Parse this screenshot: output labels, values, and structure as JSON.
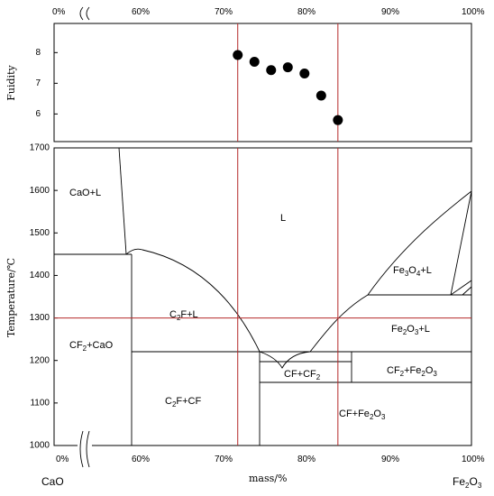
{
  "chart_data": [
    {
      "type": "scatter",
      "ylabel": "Fuidity",
      "xlim_percent": [
        50,
        100
      ],
      "ylim": [
        5.1,
        8.95
      ],
      "y_ticks": [
        "6",
        "7",
        "8"
      ],
      "top_x_ticks": [
        "0%",
        "60%",
        "70%",
        "80%",
        "90%",
        "100%"
      ],
      "points": [
        {
          "x": 72,
          "y": 7.92
        },
        {
          "x": 74,
          "y": 7.7
        },
        {
          "x": 76,
          "y": 7.43
        },
        {
          "x": 78,
          "y": 7.52
        },
        {
          "x": 80,
          "y": 7.32
        },
        {
          "x": 82,
          "y": 6.6
        },
        {
          "x": 84,
          "y": 5.8
        }
      ],
      "point_color": "#000000"
    },
    {
      "type": "phase-diagram",
      "xlabel": "mass/%",
      "ylabel": "Temperature/℃",
      "ylim": [
        1000,
        1700
      ],
      "xlim_percent": [
        50,
        100
      ],
      "y_ticks": [
        "1000",
        "1100",
        "1200",
        "1300",
        "1400",
        "1500",
        "1600",
        "1700"
      ],
      "bottom_x_ticks": [
        "0%",
        "60%",
        "70%",
        "80%",
        "90%",
        "100%"
      ],
      "components": {
        "left": "CaO",
        "right": {
          "base": "Fe",
          "sub": "2",
          "base2": "O",
          "sub2": "3"
        }
      },
      "regions": {
        "cao_l": "CaO+L",
        "l": "L",
        "c2f_l": {
          "a": "C",
          "sub": "2",
          "b": "F+L"
        },
        "fe3o4_l": {
          "a": "Fe",
          "sub1": "3",
          "b": "O",
          "sub2": "4",
          "c": "+L"
        },
        "fe2o3_l": {
          "a": "Fe",
          "sub1": "2",
          "b": "O",
          "sub2": "3",
          "c": "+L"
        },
        "cf2_cao": {
          "a": "CF",
          "sub": "2",
          "b": "+CaO"
        },
        "cf_cf2": {
          "a": "CF+CF",
          "sub": "2"
        },
        "cf2_fe2o3": {
          "a": "CF",
          "sub1": "2",
          "b": "+Fe",
          "sub2": "2",
          "c": "O",
          "sub3": "3"
        },
        "c2f_cf": {
          "a": "C",
          "sub": "2",
          "b": "F+CF"
        },
        "cf_fe2o3": {
          "a": "CF+Fe",
          "sub1": "2",
          "b": "O",
          "sub2": "3"
        }
      },
      "reference_lines": {
        "x_percent": [
          72,
          84
        ],
        "y_celsius": 1300,
        "color": "#b52a2a"
      }
    }
  ]
}
